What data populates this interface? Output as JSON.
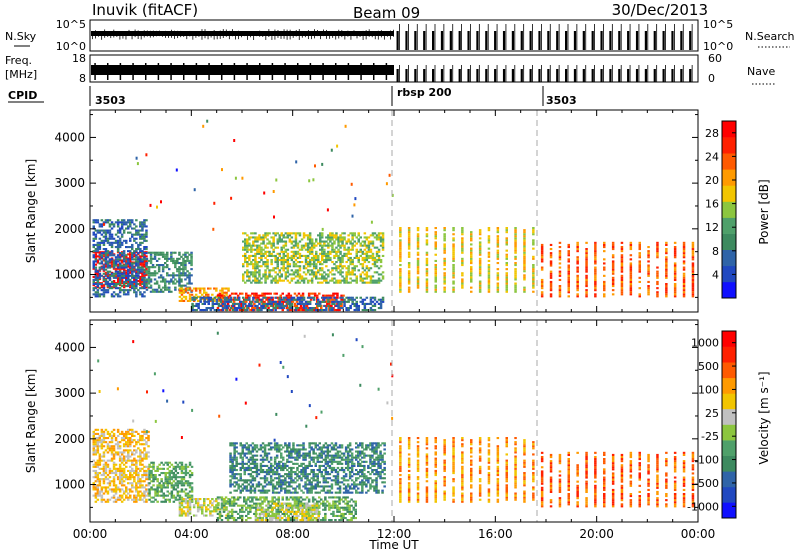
{
  "header": {
    "station": "Inuvik (fitACF)",
    "beam": "Beam 09",
    "date": "30/Dec/2013"
  },
  "strips": {
    "nsky": {
      "label": "N.Sky",
      "ticks": [
        "10^5",
        "10^0"
      ]
    },
    "nsearch": {
      "label": "N.Search",
      "ticks": [
        "10^5",
        "10^0"
      ]
    },
    "freq": {
      "label_top": "Freq.",
      "label_unit": "[MHz]",
      "ticks": [
        "18",
        "8"
      ]
    },
    "nave": {
      "label": "Nave",
      "ticks": [
        "60",
        "0"
      ]
    },
    "cpid": {
      "label": "CPID",
      "segments": [
        {
          "label": "3503",
          "start_hour": 0
        },
        {
          "label": "rbsp 200",
          "start_hour": 12
        },
        {
          "label": "3503",
          "start_hour": 18
        }
      ]
    }
  },
  "chart_data": [
    {
      "type": "heatmap",
      "name": "power-panel",
      "ylabel": "Slant Range [km]",
      "xlabel": "",
      "xlim_hours": [
        0,
        24
      ],
      "ylim_km": [
        180,
        4600
      ],
      "yticks": [
        1000,
        2000,
        3000,
        4000
      ],
      "xticks": [
        "00:00",
        "04:00",
        "08:00",
        "12:00",
        "16:00",
        "20:00",
        "00:00"
      ],
      "colorbar": {
        "label": "Power [dB]",
        "tick_labels": [
          "4",
          "8",
          "12",
          "16",
          "20",
          "24",
          "28"
        ],
        "colors": [
          "#1010ff",
          "#2048c0",
          "#2f64a8",
          "#3d8a5f",
          "#4fa06a",
          "#8cc63f",
          "#f2c500",
          "#ff9a00",
          "#ff5a00",
          "#ff2000",
          "#ff0000"
        ]
      },
      "regions": [
        {
          "t": [
            0.1,
            2.2
          ],
          "r": [
            700,
            1500
          ],
          "level": 10
        },
        {
          "t": [
            0.1,
            2.2
          ],
          "r": [
            500,
            2200
          ],
          "level": 2
        },
        {
          "t": [
            2.2,
            4.0
          ],
          "r": [
            600,
            1500
          ],
          "level": 3
        },
        {
          "t": [
            3.5,
            5.5
          ],
          "r": [
            400,
            700
          ],
          "level": 7
        },
        {
          "t": [
            5.0,
            10.0
          ],
          "r": [
            200,
            600
          ],
          "level": 9
        },
        {
          "t": [
            4.0,
            11.6
          ],
          "r": [
            200,
            500
          ],
          "level": 2
        },
        {
          "t": [
            6.0,
            11.6
          ],
          "r": [
            800,
            1900
          ],
          "level": 5
        },
        {
          "t": [
            12.2,
            17.8
          ],
          "r": [
            600,
            2000
          ],
          "level": 6
        },
        {
          "t": [
            17.8,
            24.0
          ],
          "r": [
            500,
            1700
          ],
          "level": 8
        }
      ]
    },
    {
      "type": "heatmap",
      "name": "velocity-panel",
      "ylabel": "Slant Range [km]",
      "xlabel": "Time UT",
      "xlim_hours": [
        0,
        24
      ],
      "ylim_km": [
        180,
        4600
      ],
      "yticks": [
        1000,
        2000,
        3000,
        4000
      ],
      "xticks": [
        "00:00",
        "04:00",
        "08:00",
        "12:00",
        "16:00",
        "20:00",
        "00:00"
      ],
      "colorbar": {
        "label": "Velocity [m s⁻¹]",
        "tick_labels": [
          "1000",
          "500",
          "100",
          "25",
          "-25",
          "-100",
          "-500",
          "-1000"
        ],
        "colors": [
          "#1010ff",
          "#2048c0",
          "#2f64a8",
          "#3d8a5f",
          "#4fa06a",
          "#8cc63f",
          "#c0c0c0",
          "#f2c500",
          "#ff9a00",
          "#ff5a00",
          "#ff2000",
          "#ff0000"
        ]
      },
      "regions": [
        {
          "t": [
            0.1,
            2.3
          ],
          "r": [
            600,
            2200
          ],
          "level": 7
        },
        {
          "t": [
            2.3,
            4.0
          ],
          "r": [
            600,
            1500
          ],
          "level": 4
        },
        {
          "t": [
            3.5,
            5.5
          ],
          "r": [
            300,
            700
          ],
          "level": 6
        },
        {
          "t": [
            5.0,
            10.5
          ],
          "r": [
            200,
            700
          ],
          "level": 4
        },
        {
          "t": [
            6.5,
            9.0
          ],
          "r": [
            200,
            600
          ],
          "level": 6
        },
        {
          "t": [
            5.5,
            11.6
          ],
          "r": [
            800,
            1900
          ],
          "level": 3
        },
        {
          "t": [
            12.2,
            17.8
          ],
          "r": [
            600,
            2000
          ],
          "level": 8
        },
        {
          "t": [
            17.8,
            24.0
          ],
          "r": [
            500,
            1700
          ],
          "level": 9
        }
      ]
    }
  ]
}
